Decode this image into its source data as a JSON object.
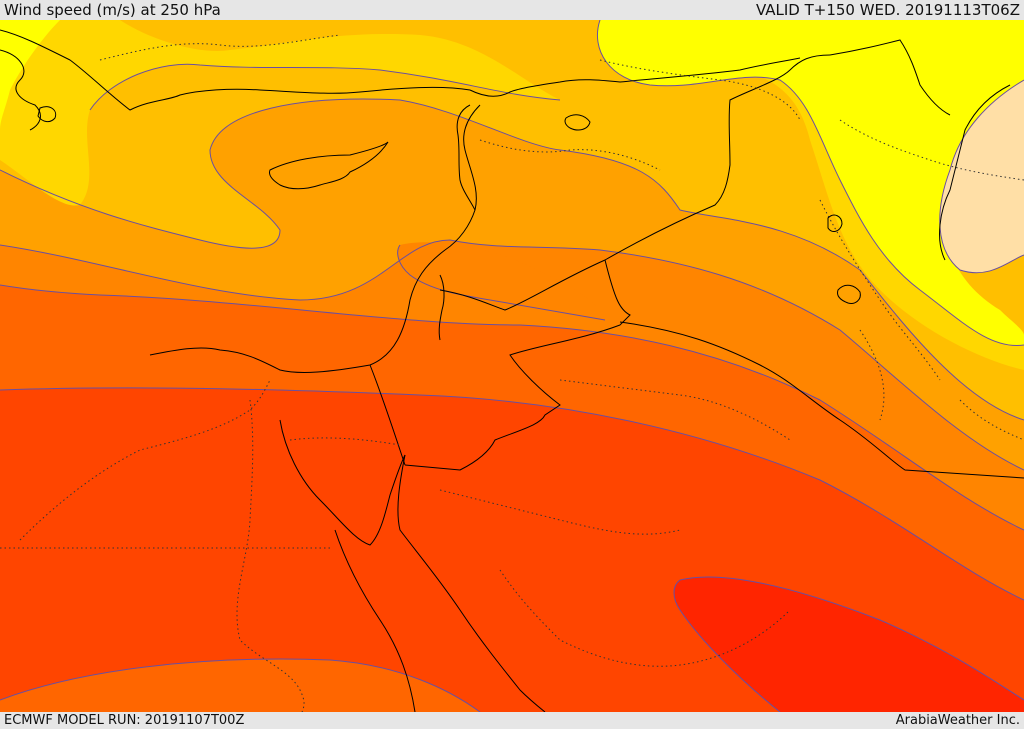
{
  "header": {
    "title": "Wind speed (m/s) at 250 hPa",
    "valid": "VALID T+150 WED. 20191113T06Z"
  },
  "footer": {
    "model_run": "ECMWF MODEL RUN: 20191107T00Z",
    "provider": "ArabiaWeather Inc."
  },
  "colors": {
    "band_peach": "#ffdfa6",
    "band_yellow": "#ffff00",
    "band_gold": "#ffd700",
    "band_amber": "#ffbf00",
    "band_orange": "#ffa100",
    "band_dark_orange": "#ff8500",
    "band_red_orange": "#ff6600",
    "band_orange_red": "#ff4500",
    "band_red": "#ff2500",
    "contour_line": "#6a4fa0",
    "coastline": "#000000"
  }
}
